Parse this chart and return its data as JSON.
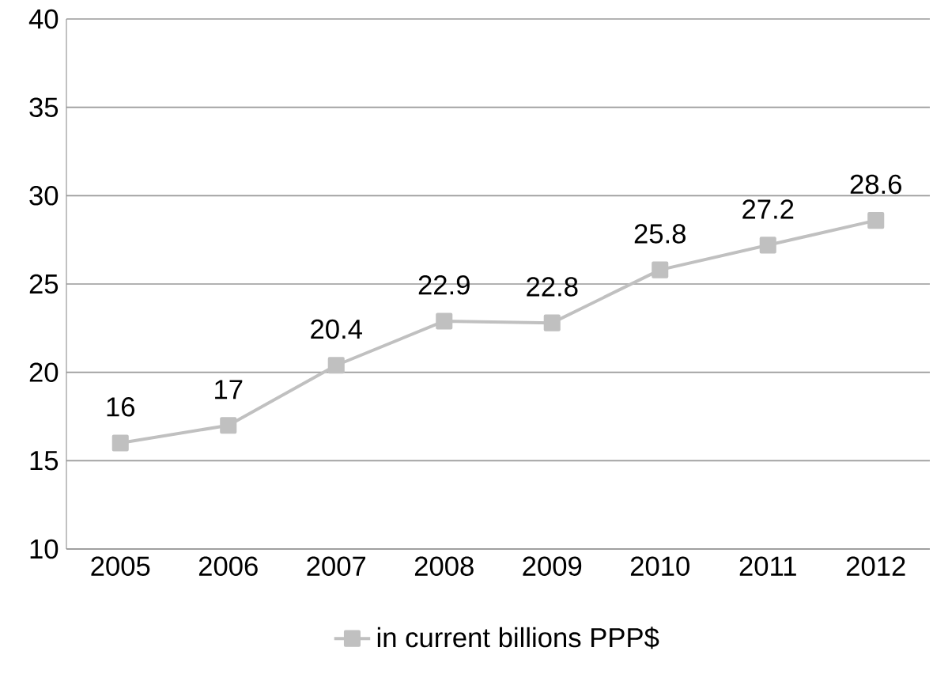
{
  "chart_data": {
    "type": "line",
    "categories": [
      "2005",
      "2006",
      "2007",
      "2008",
      "2009",
      "2010",
      "2011",
      "2012"
    ],
    "series": [
      {
        "name": "in current billions PPP$",
        "color": "#c0c0c0",
        "values": [
          16,
          17,
          20.4,
          22.9,
          22.8,
          25.8,
          27.2,
          28.6
        ]
      }
    ],
    "ylim": [
      10,
      40
    ],
    "yticks": [
      10,
      15,
      20,
      25,
      30,
      35,
      40
    ],
    "grid": "y",
    "legend": "bottom",
    "marker": "square",
    "line_style": "solid",
    "data_labels": true
  }
}
